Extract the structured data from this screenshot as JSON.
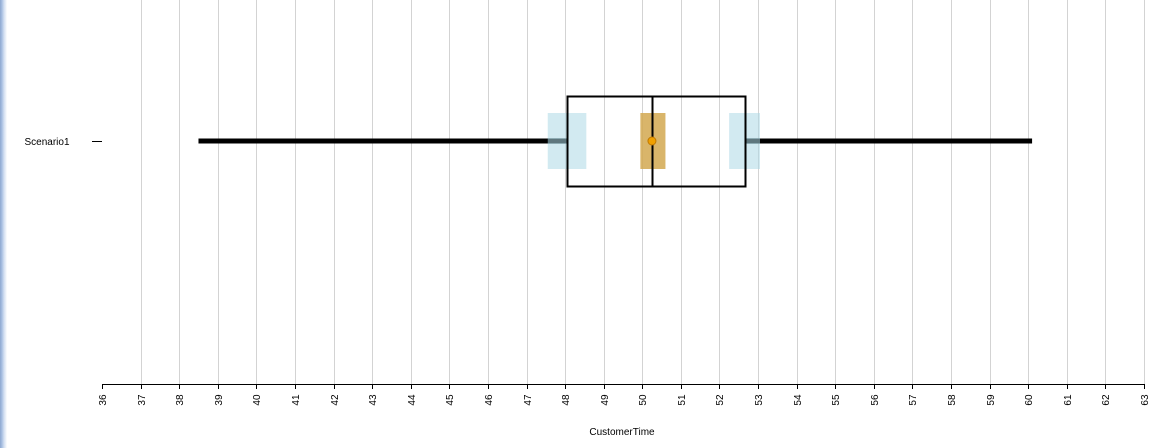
{
  "chart_data": {
    "type": "box",
    "orientation": "horizontal",
    "xlabel": "CustomerTime",
    "xlim": [
      36,
      63
    ],
    "x_ticks": [
      36,
      37,
      38,
      39,
      40,
      41,
      42,
      43,
      44,
      45,
      46,
      47,
      48,
      49,
      50,
      51,
      52,
      53,
      54,
      55,
      56,
      57,
      58,
      59,
      60,
      61,
      62,
      63
    ],
    "grid": "vertical",
    "categories": [
      "Scenario1"
    ],
    "boxes": [
      {
        "category": "Scenario1",
        "min": 38.5,
        "q1": 48.05,
        "median": 50.25,
        "q3": 52.65,
        "max": 60.1,
        "mean": 50.25,
        "mean_ci": [
          49.95,
          50.6
        ],
        "q1_ci": [
          47.55,
          48.55
        ],
        "q3_ci": [
          52.25,
          53.05
        ]
      }
    ],
    "colors": {
      "whisker": "#000000",
      "box_edge": "#000000",
      "quartile_ci_fill": "#add8e6",
      "median_ci_fill": "#d2a850",
      "mean_marker": "#f0a000",
      "mean_marker_edge": "#c07800",
      "grid": "#d3d3d3",
      "left_edge": "#a9c0e2"
    }
  }
}
